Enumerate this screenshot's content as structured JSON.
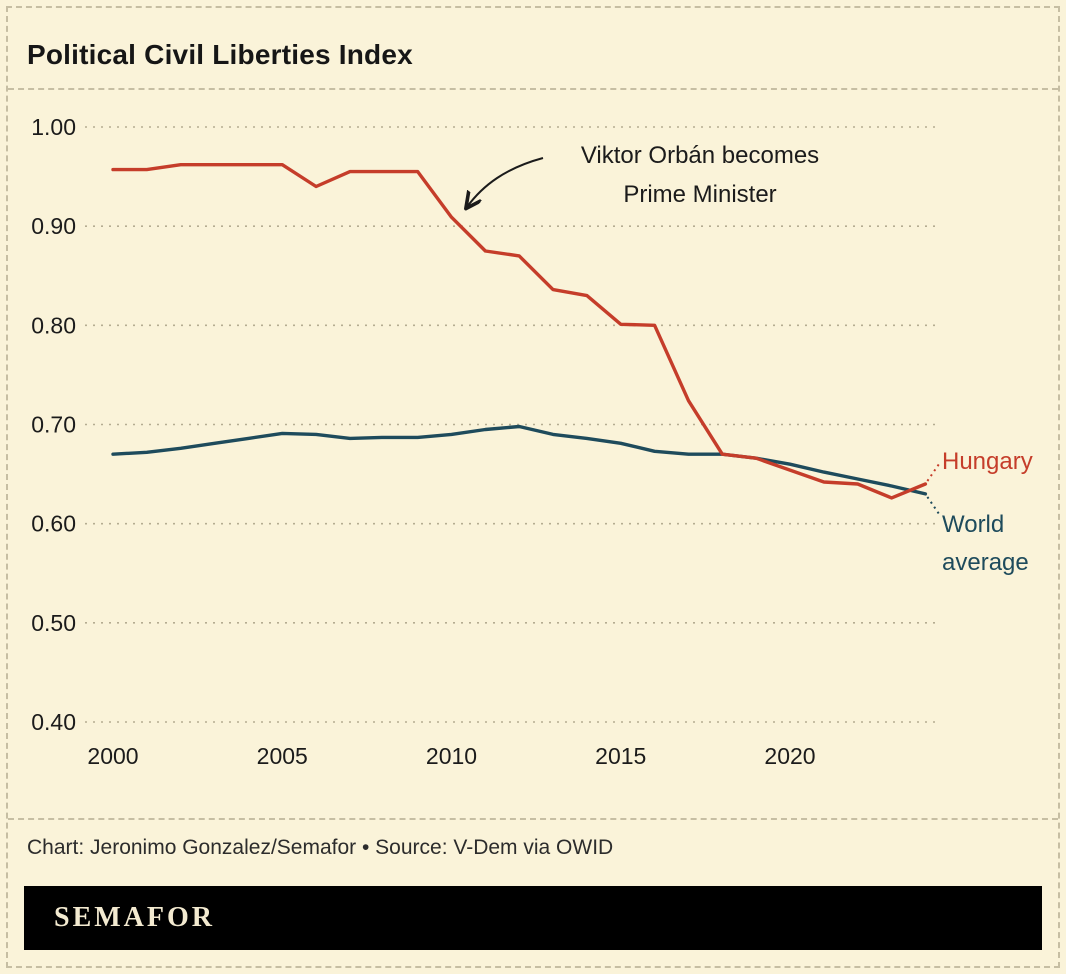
{
  "title": "Political Civil Liberties Index",
  "annotation": {
    "line1": "Viktor Orbán becomes",
    "line2": "Prime Minister"
  },
  "series_labels": {
    "hungary": "Hungary",
    "world_line1": "World",
    "world_line2": "average"
  },
  "credit": "Chart: Jeronimo Gonzalez/Semafor • Source: V-Dem via OWID",
  "logo_text": "SEMAFOR",
  "colors": {
    "background": "#faf3d9",
    "border_dash": "#c6bea3",
    "grid": "#b4ac91",
    "text": "#1b1b1b",
    "hungary": "#c53d2a",
    "world": "#1e4b5c",
    "logo_bg": "#000000",
    "logo_text": "#f3ead0"
  },
  "chart_data": {
    "type": "line",
    "title": "Political Civil Liberties Index",
    "x": [
      2000,
      2001,
      2002,
      2003,
      2004,
      2005,
      2006,
      2007,
      2008,
      2009,
      2010,
      2011,
      2012,
      2013,
      2014,
      2015,
      2016,
      2017,
      2018,
      2019,
      2020,
      2021,
      2022,
      2023,
      2024
    ],
    "series": [
      {
        "name": "Hungary",
        "color": "#c53d2a",
        "values": [
          0.957,
          0.957,
          0.962,
          0.962,
          0.962,
          0.962,
          0.94,
          0.955,
          0.955,
          0.955,
          0.909,
          0.875,
          0.87,
          0.836,
          0.83,
          0.801,
          0.8,
          0.724,
          0.67,
          0.666,
          0.654,
          0.642,
          0.64,
          0.626,
          0.64
        ]
      },
      {
        "name": "World average",
        "color": "#1e4b5c",
        "values": [
          0.67,
          0.672,
          0.676,
          0.681,
          0.686,
          0.691,
          0.69,
          0.686,
          0.687,
          0.687,
          0.69,
          0.695,
          0.698,
          0.69,
          0.686,
          0.681,
          0.673,
          0.67,
          0.67,
          0.666,
          0.66,
          0.652,
          0.645,
          0.638,
          0.63
        ]
      }
    ],
    "ylim": [
      0.4,
      1.0
    ],
    "ytick_labels": [
      "1.00",
      "0.90",
      "0.80",
      "0.70",
      "0.60",
      "0.50",
      "0.40"
    ],
    "xticks": [
      2000,
      2005,
      2010,
      2015,
      2020
    ],
    "xlabel": "",
    "ylabel": "",
    "grid": "horizontal-dashed",
    "legend_position": "end-of-line labels at right",
    "annotations": [
      "Viktor Orbán becomes Prime Minister — arrow pointing to Hungary line near 2010"
    ]
  }
}
